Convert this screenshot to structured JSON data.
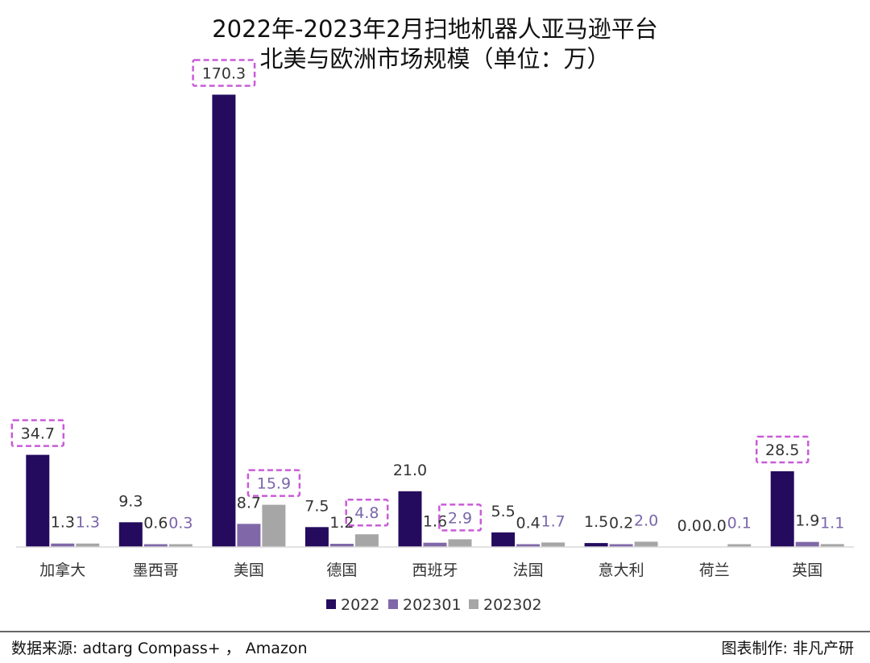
{
  "chart_data": {
    "type": "bar",
    "title": "2022年-2023年2月扫地机器人亚马逊平台",
    "subtitle": "北美与欧洲市场规模（单位：万）",
    "categories": [
      "加拿大",
      "墨西哥",
      "美国",
      "德国",
      "西班牙",
      "法国",
      "意大利",
      "荷兰",
      "英国"
    ],
    "series": [
      {
        "name": "2022",
        "color": "#250b5e",
        "values": [
          34.7,
          9.3,
          170.3,
          7.5,
          21.0,
          5.5,
          1.5,
          0.0,
          28.5
        ],
        "labels": [
          "34.7",
          "9.3",
          "170.3",
          "7.5",
          "21.0",
          "5.5",
          "1.5",
          "0.0",
          "28.5"
        ]
      },
      {
        "name": "202301",
        "color": "#8068a8",
        "values": [
          1.3,
          0.6,
          8.7,
          1.2,
          1.6,
          0.4,
          0.2,
          0.0,
          1.9
        ],
        "labels": [
          "1.3",
          "0.6",
          "8.7",
          "1.2",
          "1.6",
          "0.4",
          "0.2",
          "0.0",
          "1.9"
        ]
      },
      {
        "name": "202302",
        "color": "#a6a6a6",
        "values": [
          1.3,
          0.3,
          15.9,
          4.8,
          2.9,
          1.7,
          2.0,
          0.1,
          1.1
        ],
        "labels": [
          "1.3",
          "0.3",
          "15.9",
          "4.8",
          "2.9",
          "1.7",
          "2.0",
          "0.1",
          "1.1"
        ]
      }
    ],
    "label_colors": [
      "#333333",
      "#333333",
      "#7a66aa"
    ],
    "highlighted": [
      {
        "series": 0,
        "category": 0
      },
      {
        "series": 0,
        "category": 2
      },
      {
        "series": 2,
        "category": 2
      },
      {
        "series": 2,
        "category": 3
      },
      {
        "series": 2,
        "category": 4
      },
      {
        "series": 0,
        "category": 8
      }
    ],
    "highlight_color": "#c95bd8",
    "ylim": [
      0,
      175
    ],
    "legend_position": "bottom",
    "grid": false
  },
  "footer": {
    "source": "数据来源: adtarg Compass+ ，  Amazon",
    "credit": "图表制作: 非凡产研"
  }
}
